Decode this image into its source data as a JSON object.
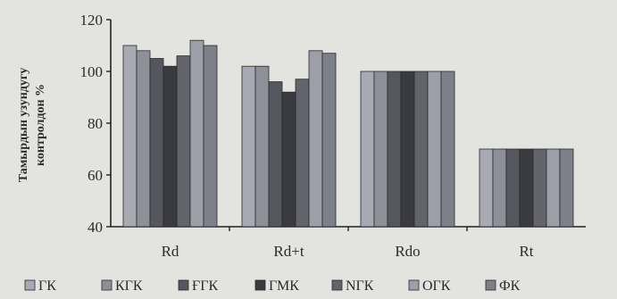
{
  "chart_data": {
    "type": "bar",
    "ylabel_line1": "Тамырдын узундугу",
    "ylabel_line2": "контролдон %",
    "xlabel": "",
    "ylim": [
      40,
      120
    ],
    "yticks": [
      40,
      60,
      80,
      100,
      120
    ],
    "grid": false,
    "legend_position": "bottom",
    "categories": [
      "Rd",
      "Rd+t",
      "Rdo",
      "Rt"
    ],
    "series": [
      {
        "name": "ГК",
        "color": "#a7a9b3",
        "values": [
          110,
          102,
          100,
          70
        ]
      },
      {
        "name": "КГК",
        "color": "#8e9099",
        "values": [
          108,
          102,
          100,
          70
        ]
      },
      {
        "name": "ҒГК",
        "color": "#56575e",
        "values": [
          105,
          96,
          100,
          70
        ]
      },
      {
        "name": "ГМК",
        "color": "#3a3b40",
        "values": [
          102,
          92,
          100,
          70
        ]
      },
      {
        "name": "NГК",
        "color": "#62636b",
        "values": [
          106,
          97,
          100,
          70
        ]
      },
      {
        "name": "ОГК",
        "color": "#9c9ea8",
        "values": [
          112,
          108,
          100,
          70
        ]
      },
      {
        "name": "ФК",
        "color": "#7d7f89",
        "values": [
          110,
          107,
          100,
          70
        ]
      }
    ]
  }
}
